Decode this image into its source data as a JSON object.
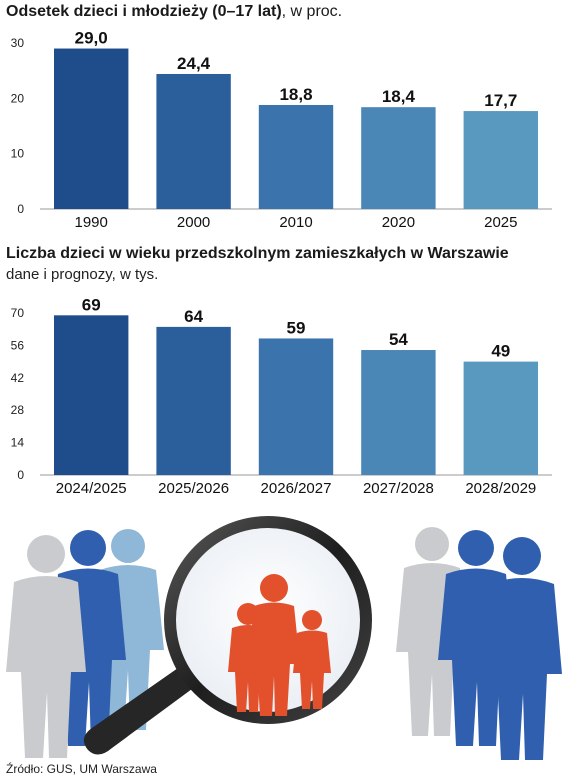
{
  "chart_data": [
    {
      "type": "bar",
      "title": "Odsetek dzieci i młodzieży (0–17 lat)",
      "title_suffix": ", w proc.",
      "categories": [
        "1990",
        "2000",
        "2010",
        "2020",
        "2025"
      ],
      "values": [
        29.0,
        24.4,
        18.8,
        18.4,
        17.7
      ],
      "value_labels": [
        "29,0",
        "24,4",
        "18,8",
        "18,4",
        "17,7"
      ],
      "yticks": [
        "0",
        "10",
        "20",
        "30"
      ],
      "ylim": [
        0,
        30
      ],
      "grid": false,
      "colors": [
        "#1f4c8a",
        "#2b5f9c",
        "#3b74ac",
        "#4a86b6",
        "#5a99bf"
      ]
    },
    {
      "type": "bar",
      "title": "Liczba dzieci w wieku przedszkolnym zamieszkałych w Warszawie",
      "subtitle": "dane i prognozy, w tys.",
      "categories": [
        "2024/2025",
        "2025/2026",
        "2026/2027",
        "2027/2028",
        "2028/2029"
      ],
      "values": [
        69,
        64,
        59,
        54,
        49
      ],
      "value_labels": [
        "69",
        "64",
        "59",
        "54",
        "49"
      ],
      "yticks": [
        "0",
        "14",
        "28",
        "42",
        "56",
        "70"
      ],
      "ylim": [
        0,
        70
      ],
      "grid": false,
      "colors": [
        "#1f4c8a",
        "#2b5f9c",
        "#3b74ac",
        "#4a86b6",
        "#5a99bf"
      ]
    }
  ],
  "source": "Źródło: GUS, UM Warszawa",
  "illustration": {
    "icons": [
      "people-group-icon",
      "magnifying-glass-icon"
    ],
    "colors": {
      "grey": "#c9cbcf",
      "blue": "#2f5fae",
      "lightblue": "#8fb7d8",
      "orange": "#e2502c",
      "handle": "#2b2b2b"
    }
  }
}
